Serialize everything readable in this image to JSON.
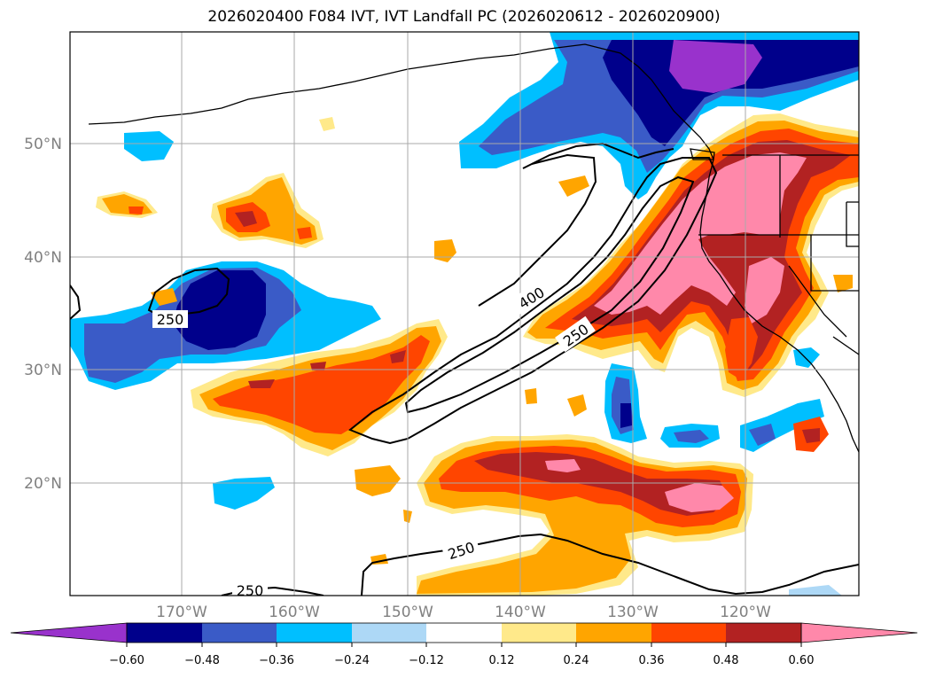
{
  "title": "2026020400 F084 IVT, IVT Landfall PC (2026020612 - 2026020900)",
  "latitude_labels": [
    "50°N",
    "40°N",
    "30°N",
    "20°N"
  ],
  "longitude_labels": [
    "170°W",
    "160°W",
    "150°W",
    "140°W",
    "130°W",
    "120°W"
  ],
  "contour_labels": [
    "400",
    "250",
    "250",
    "250",
    "250"
  ],
  "colorbar": {
    "tick_labels": [
      "−0.60",
      "−0.48",
      "−0.36",
      "−0.24",
      "−0.12",
      "0.12",
      "0.24",
      "0.36",
      "0.48",
      "0.60"
    ],
    "colors": [
      "#9932CC",
      "#00008B",
      "#3A5BC7",
      "#00BFFF",
      "#ADD8F6",
      "#FFFFFF",
      "#FFE98A",
      "#FFA500",
      "#FF4500",
      "#B22222",
      "#FF88AA"
    ]
  }
}
